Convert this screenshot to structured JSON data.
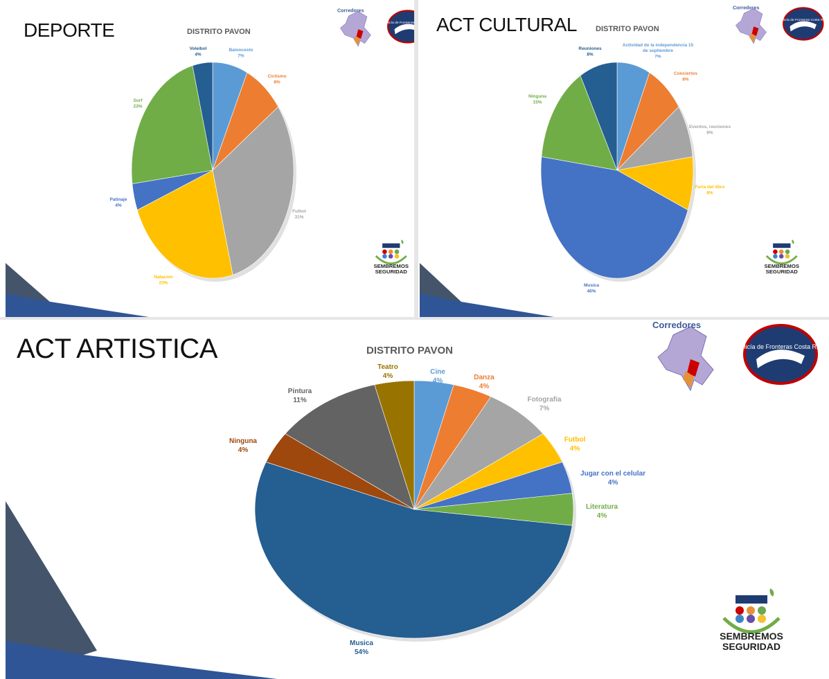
{
  "panels": [
    {
      "heading": "DEPORTE",
      "subtitle": "DISTRITO PAVON",
      "logo_left_label": "Corredores",
      "logo_right_label": "Policía de Fronteras Costa Rica"
    },
    {
      "heading": "ACT CULTURAL",
      "subtitle": "DISTRITO PAVON",
      "logo_left_label": "Corredores",
      "logo_right_label": "Policía de Fronteras Costa Rica"
    },
    {
      "heading": "ACT ARTISTICA",
      "subtitle": "DISTRITO PAVON",
      "logo_left_label": "Corredores",
      "logo_right_label": "Policía de Fronteras Costa Rica"
    }
  ],
  "sembremos": {
    "line1": "SEMBREMOS",
    "line2": "SEGURIDAD"
  },
  "colors": {
    "blue_light": "#5b9bd5",
    "orange": "#ed7d31",
    "gray": "#a5a5a5",
    "yellow": "#ffc000",
    "blue": "#4472c4",
    "green": "#70ad47",
    "navy": "#255e91",
    "brown": "#9e480e",
    "darkgray": "#636363",
    "olive": "#997300",
    "corner_dark": "#44546a",
    "corner_blue": "#2f5597"
  },
  "chart_data": [
    {
      "type": "pie",
      "title": "DISTRITO PAVON",
      "slices": [
        {
          "label": "Baloncesto",
          "value": 7,
          "pct": "7%",
          "color": "#5b9bd5"
        },
        {
          "label": "Ciclismo",
          "value": 8,
          "pct": "8%",
          "color": "#ed7d31"
        },
        {
          "label": "Futbol",
          "value": 31,
          "pct": "31%",
          "color": "#a5a5a5"
        },
        {
          "label": "Natacion",
          "value": 23,
          "pct": "23%",
          "color": "#ffc000"
        },
        {
          "label": "Patinaje",
          "value": 4,
          "pct": "4%",
          "color": "#4472c4"
        },
        {
          "label": "Surf",
          "value": 23,
          "pct": "23%",
          "color": "#70ad47"
        },
        {
          "label": "Voleibol",
          "value": 4,
          "pct": "4%",
          "color": "#255e91"
        }
      ]
    },
    {
      "type": "pie",
      "title": "DISTRITO PAVON",
      "slices": [
        {
          "label": "Actividad de la independencia 15 de septiembre",
          "value": 7,
          "pct": "7%",
          "color": "#5b9bd5"
        },
        {
          "label": "Conciertos",
          "value": 8,
          "pct": "8%",
          "color": "#ed7d31"
        },
        {
          "label": "Eventos, reuniones",
          "value": 8,
          "pct": "8%",
          "color": "#a5a5a5"
        },
        {
          "label": "Feria del libro",
          "value": 8,
          "pct": "8%",
          "color": "#ffc000"
        },
        {
          "label": "Musica",
          "value": 46,
          "pct": "46%",
          "color": "#4472c4"
        },
        {
          "label": "Ninguna",
          "value": 15,
          "pct": "15%",
          "color": "#70ad47"
        },
        {
          "label": "Reuniones",
          "value": 8,
          "pct": "8%",
          "color": "#255e91"
        }
      ]
    },
    {
      "type": "pie",
      "title": "DISTRITO PAVON",
      "slices": [
        {
          "label": "Cine",
          "value": 4,
          "pct": "4%",
          "color": "#5b9bd5"
        },
        {
          "label": "Danza",
          "value": 4,
          "pct": "4%",
          "color": "#ed7d31"
        },
        {
          "label": "Fotografia",
          "value": 7,
          "pct": "7%",
          "color": "#a5a5a5"
        },
        {
          "label": "Futbol",
          "value": 4,
          "pct": "4%",
          "color": "#ffc000"
        },
        {
          "label": "Jugar con el celular",
          "value": 4,
          "pct": "4%",
          "color": "#4472c4"
        },
        {
          "label": "Literatura",
          "value": 4,
          "pct": "4%",
          "color": "#70ad47"
        },
        {
          "label": "Musica",
          "value": 54,
          "pct": "54%",
          "color": "#255e91"
        },
        {
          "label": "Ninguna",
          "value": 4,
          "pct": "4%",
          "color": "#9e480e"
        },
        {
          "label": "Pintura",
          "value": 11,
          "pct": "11%",
          "color": "#636363"
        },
        {
          "label": "Teatro",
          "value": 4,
          "pct": "4%",
          "color": "#997300"
        }
      ]
    }
  ]
}
